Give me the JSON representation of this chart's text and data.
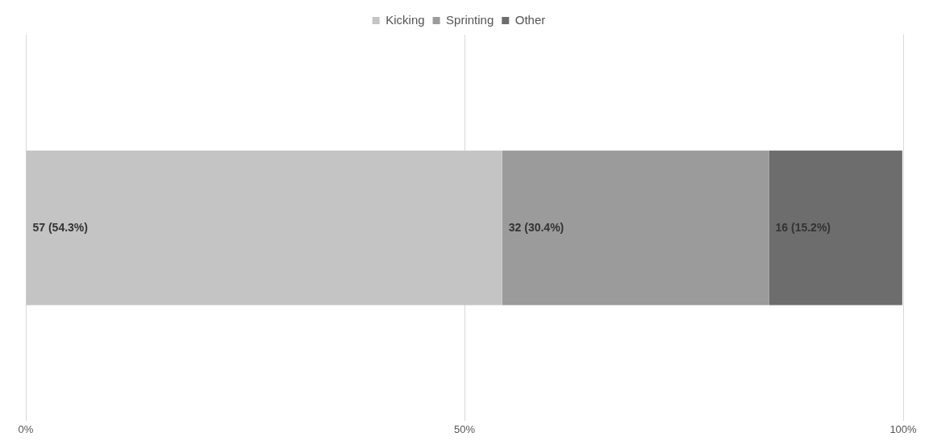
{
  "chart_data": {
    "type": "bar",
    "orientation": "horizontal",
    "stacked": true,
    "categories": [
      null
    ],
    "series": [
      {
        "name": "Kicking",
        "color": "#c4c4c4",
        "values": [
          54.3
        ],
        "value_labels": [
          "57 (54.3%)"
        ]
      },
      {
        "name": "Sprinting",
        "color": "#9b9b9b",
        "values": [
          30.4
        ],
        "value_labels": [
          "32 (30.4%)"
        ]
      },
      {
        "name": "Other",
        "color": "#6d6d6d",
        "values": [
          15.2
        ],
        "value_labels": [
          "16 (15.2%)"
        ]
      }
    ],
    "xlim": [
      0,
      100
    ],
    "xticks": [
      {
        "value": 0,
        "label": "0%"
      },
      {
        "value": 50,
        "label": "50%"
      },
      {
        "value": 100,
        "label": "100%"
      }
    ],
    "grid": "x",
    "legend": "top"
  }
}
